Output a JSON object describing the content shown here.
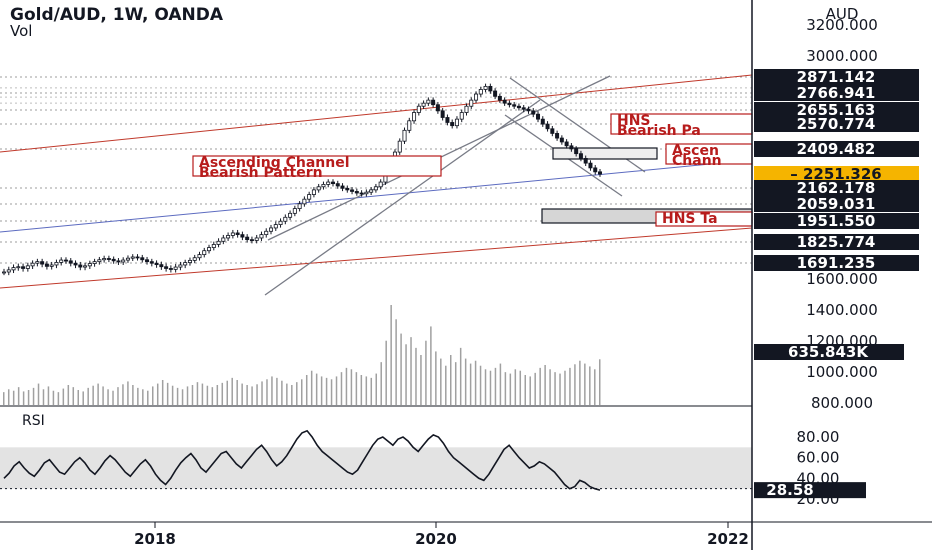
{
  "header": {
    "title": "Gold/AUD, 1W, OANDA",
    "volume_label": "Vol",
    "rsi_label": "RSI"
  },
  "colors": {
    "up": "#131722",
    "down": "#131722",
    "channel": "#787b86",
    "trend_red": "#c0392b",
    "trend_blue": "#5c6bc0",
    "annotation": "#b71c1c",
    "badge_dark": "#131722",
    "badge_current": "#f5b400",
    "rsi_band": "#d9d9d9"
  },
  "chart_data": [
    {
      "type": "candlestick",
      "title": "Gold/AUD, 1W, OANDA",
      "y_axis_unit": "AUD",
      "ylim": [
        770,
        3290
      ],
      "y_ticks": [
        800,
        1000,
        1200,
        1400,
        1600,
        3000,
        3200
      ],
      "y_tick_labels": [
        "800.000",
        "1000.000",
        "1200.000",
        "1400.000",
        "1600.000",
        "3000.000",
        "3200.000"
      ],
      "x_ticks": [
        "2018",
        "2020",
        "2022"
      ],
      "price_levels": [
        {
          "value": "2871.142",
          "type": "dark"
        },
        {
          "value": "2766.941",
          "type": "dark"
        },
        {
          "value": "2655.163",
          "type": "dark"
        },
        {
          "value": "2570.774",
          "type": "dark"
        },
        {
          "value": "2409.482",
          "type": "dark"
        },
        {
          "value": "2251.326",
          "type": "current"
        },
        {
          "value": "2162.178",
          "type": "dark"
        },
        {
          "value": "2059.031",
          "type": "dark"
        },
        {
          "value": "1951.550",
          "type": "dark"
        },
        {
          "value": "1825.774",
          "type": "dark"
        },
        {
          "value": "1691.235",
          "type": "dark"
        }
      ],
      "price_series": [
        1640,
        1652,
        1665,
        1670,
        1660,
        1675,
        1690,
        1700,
        1685,
        1672,
        1680,
        1695,
        1710,
        1705,
        1690,
        1680,
        1668,
        1675,
        1688,
        1700,
        1712,
        1720,
        1715,
        1705,
        1698,
        1710,
        1722,
        1730,
        1725,
        1712,
        1700,
        1690,
        1682,
        1670,
        1660,
        1655,
        1668,
        1680,
        1694,
        1708,
        1725,
        1745,
        1770,
        1790,
        1810,
        1830,
        1850,
        1865,
        1880,
        1870,
        1855,
        1840,
        1835,
        1850,
        1870,
        1890,
        1910,
        1930,
        1950,
        1975,
        2000,
        2030,
        2060,
        2090,
        2120,
        2150,
        2170,
        2185,
        2200,
        2190,
        2175,
        2160,
        2150,
        2140,
        2130,
        2125,
        2135,
        2150,
        2170,
        2200,
        2260,
        2320,
        2390,
        2460,
        2530,
        2590,
        2640,
        2680,
        2700,
        2720,
        2690,
        2650,
        2610,
        2580,
        2560,
        2600,
        2640,
        2680,
        2720,
        2760,
        2790,
        2810,
        2780,
        2745,
        2720,
        2700,
        2690,
        2680,
        2670,
        2660,
        2650,
        2630,
        2600,
        2570,
        2540,
        2510,
        2480,
        2455,
        2430,
        2410,
        2380,
        2350,
        2320,
        2290,
        2265,
        2251
      ],
      "annotations": [
        {
          "lines": [
            "Ascending Channel",
            "Bearish Pattern"
          ]
        },
        {
          "lines": [
            "HNS",
            "Bearish Pa"
          ]
        },
        {
          "lines": [
            "Ascen",
            "Chann"
          ]
        },
        {
          "lines": [
            "HNS Ta"
          ]
        }
      ]
    },
    {
      "type": "bar",
      "title": "Vol",
      "last_value": "635.843K",
      "values": [
        18,
        22,
        20,
        25,
        19,
        21,
        24,
        30,
        22,
        26,
        20,
        18,
        23,
        28,
        25,
        21,
        19,
        24,
        27,
        30,
        26,
        22,
        20,
        25,
        29,
        33,
        28,
        24,
        22,
        20,
        26,
        30,
        35,
        31,
        27,
        24,
        22,
        26,
        28,
        32,
        30,
        27,
        25,
        28,
        31,
        34,
        38,
        35,
        30,
        28,
        26,
        29,
        33,
        36,
        40,
        38,
        34,
        30,
        28,
        32,
        36,
        42,
        48,
        44,
        40,
        38,
        36,
        40,
        46,
        52,
        50,
        46,
        42,
        40,
        38,
        44,
        60,
        90,
        140,
        120,
        100,
        85,
        95,
        80,
        70,
        90,
        110,
        75,
        65,
        55,
        70,
        60,
        80,
        65,
        58,
        62,
        55,
        50,
        48,
        52,
        58,
        46,
        44,
        50,
        48,
        42,
        40,
        45,
        52,
        56,
        50,
        46,
        44,
        48,
        52,
        57,
        62,
        58,
        54,
        50,
        64
      ],
      "scale_max": 140
    },
    {
      "type": "line",
      "title": "RSI",
      "ylim": [
        10,
        90
      ],
      "y_ticks": [
        20,
        40,
        60,
        80
      ],
      "y_tick_labels": [
        "20.00",
        "40.00",
        "60.00",
        "80.00"
      ],
      "band": [
        30,
        70
      ],
      "last_value": "28.58",
      "values": [
        40,
        45,
        52,
        56,
        50,
        45,
        42,
        48,
        55,
        58,
        52,
        46,
        44,
        50,
        56,
        60,
        55,
        48,
        44,
        50,
        57,
        62,
        58,
        52,
        46,
        42,
        48,
        54,
        58,
        52,
        44,
        38,
        34,
        40,
        48,
        55,
        60,
        64,
        58,
        50,
        46,
        52,
        58,
        64,
        66,
        60,
        54,
        50,
        56,
        62,
        68,
        72,
        66,
        58,
        52,
        56,
        62,
        70,
        78,
        84,
        86,
        80,
        72,
        66,
        62,
        58,
        54,
        50,
        46,
        44,
        48,
        56,
        64,
        72,
        78,
        80,
        76,
        72,
        78,
        80,
        76,
        70,
        66,
        72,
        78,
        82,
        80,
        74,
        66,
        60,
        56,
        52,
        48,
        44,
        40,
        38,
        44,
        52,
        60,
        68,
        72,
        66,
        60,
        55,
        50,
        52,
        56,
        54,
        50,
        46,
        40,
        34,
        30,
        32,
        38,
        36,
        32,
        30,
        28.58
      ]
    }
  ]
}
